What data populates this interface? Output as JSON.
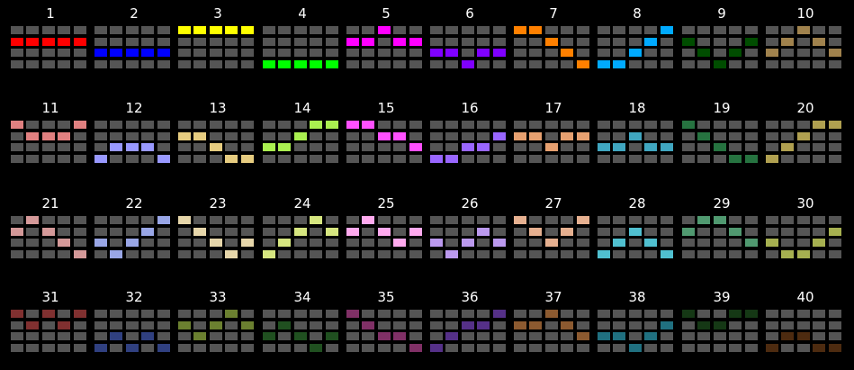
{
  "colors": {
    "background": "#000000",
    "cell_off": "#555555",
    "label_text": "#ffffff"
  },
  "patterns": [
    {
      "label": "1",
      "color": "#ff0000",
      "lit": [
        [
          1,
          0
        ],
        [
          1,
          1
        ],
        [
          1,
          2
        ],
        [
          1,
          3
        ],
        [
          1,
          4
        ]
      ]
    },
    {
      "label": "2",
      "color": "#0000ff",
      "lit": [
        [
          2,
          0
        ],
        [
          2,
          1
        ],
        [
          2,
          2
        ],
        [
          2,
          3
        ],
        [
          2,
          4
        ]
      ]
    },
    {
      "label": "3",
      "color": "#ffff00",
      "lit": [
        [
          0,
          0
        ],
        [
          0,
          1
        ],
        [
          0,
          2
        ],
        [
          0,
          3
        ],
        [
          0,
          4
        ]
      ]
    },
    {
      "label": "4",
      "color": "#00ff00",
      "lit": [
        [
          3,
          0
        ],
        [
          3,
          1
        ],
        [
          3,
          2
        ],
        [
          3,
          3
        ],
        [
          3,
          4
        ]
      ]
    },
    {
      "label": "5",
      "color": "#ff00ff",
      "lit": [
        [
          0,
          2
        ],
        [
          1,
          0
        ],
        [
          1,
          1
        ],
        [
          1,
          3
        ],
        [
          1,
          4
        ]
      ]
    },
    {
      "label": "6",
      "color": "#7f00ff",
      "lit": [
        [
          2,
          0
        ],
        [
          2,
          1
        ],
        [
          2,
          3
        ],
        [
          2,
          4
        ],
        [
          3,
          2
        ]
      ]
    },
    {
      "label": "7",
      "color": "#ff8000",
      "lit": [
        [
          0,
          0
        ],
        [
          0,
          1
        ],
        [
          1,
          2
        ],
        [
          2,
          3
        ],
        [
          3,
          4
        ]
      ]
    },
    {
      "label": "8",
      "color": "#00aaff",
      "lit": [
        [
          0,
          4
        ],
        [
          1,
          3
        ],
        [
          2,
          2
        ],
        [
          3,
          0
        ],
        [
          3,
          1
        ]
      ]
    },
    {
      "label": "9",
      "color": "#004d00",
      "lit": [
        [
          1,
          0
        ],
        [
          1,
          4
        ],
        [
          2,
          1
        ],
        [
          2,
          3
        ],
        [
          3,
          2
        ]
      ]
    },
    {
      "label": "10",
      "color": "#a0824d",
      "lit": [
        [
          0,
          2
        ],
        [
          1,
          1
        ],
        [
          1,
          3
        ],
        [
          2,
          0
        ],
        [
          2,
          4
        ]
      ]
    },
    {
      "label": "11",
      "color": "#e08080",
      "lit": [
        [
          0,
          0
        ],
        [
          0,
          4
        ],
        [
          1,
          1
        ],
        [
          1,
          2
        ],
        [
          1,
          3
        ]
      ]
    },
    {
      "label": "12",
      "color": "#9999ff",
      "lit": [
        [
          2,
          1
        ],
        [
          2,
          2
        ],
        [
          2,
          3
        ],
        [
          3,
          0
        ],
        [
          3,
          4
        ]
      ]
    },
    {
      "label": "13",
      "color": "#e6cc80",
      "lit": [
        [
          1,
          0
        ],
        [
          1,
          1
        ],
        [
          2,
          2
        ],
        [
          3,
          3
        ],
        [
          3,
          4
        ]
      ]
    },
    {
      "label": "14",
      "color": "#aaf050",
      "lit": [
        [
          0,
          3
        ],
        [
          0,
          4
        ],
        [
          1,
          2
        ],
        [
          2,
          0
        ],
        [
          2,
          1
        ]
      ]
    },
    {
      "label": "15",
      "color": "#ff50ff",
      "lit": [
        [
          0,
          0
        ],
        [
          0,
          1
        ],
        [
          1,
          2
        ],
        [
          1,
          3
        ],
        [
          2,
          4
        ]
      ]
    },
    {
      "label": "16",
      "color": "#9966ff",
      "lit": [
        [
          1,
          4
        ],
        [
          2,
          2
        ],
        [
          2,
          3
        ],
        [
          3,
          0
        ],
        [
          3,
          1
        ]
      ]
    },
    {
      "label": "17",
      "color": "#e6a070",
      "lit": [
        [
          1,
          0
        ],
        [
          1,
          1
        ],
        [
          1,
          3
        ],
        [
          1,
          4
        ],
        [
          2,
          2
        ]
      ]
    },
    {
      "label": "18",
      "color": "#40a6c0",
      "lit": [
        [
          1,
          2
        ],
        [
          2,
          0
        ],
        [
          2,
          1
        ],
        [
          2,
          3
        ],
        [
          2,
          4
        ]
      ]
    },
    {
      "label": "19",
      "color": "#267340",
      "lit": [
        [
          0,
          0
        ],
        [
          1,
          1
        ],
        [
          2,
          2
        ],
        [
          3,
          3
        ],
        [
          3,
          4
        ]
      ]
    },
    {
      "label": "20",
      "color": "#b0a050",
      "lit": [
        [
          0,
          3
        ],
        [
          0,
          4
        ],
        [
          1,
          2
        ],
        [
          2,
          1
        ],
        [
          3,
          0
        ]
      ]
    },
    {
      "label": "21",
      "color": "#d49999",
      "lit": [
        [
          0,
          1
        ],
        [
          1,
          0
        ],
        [
          1,
          2
        ],
        [
          2,
          3
        ],
        [
          3,
          4
        ]
      ]
    },
    {
      "label": "22",
      "color": "#99a6e6",
      "lit": [
        [
          0,
          4
        ],
        [
          1,
          3
        ],
        [
          2,
          0
        ],
        [
          2,
          2
        ],
        [
          3,
          1
        ]
      ]
    },
    {
      "label": "23",
      "color": "#e6d6aa",
      "lit": [
        [
          0,
          0
        ],
        [
          1,
          1
        ],
        [
          2,
          2
        ],
        [
          2,
          4
        ],
        [
          3,
          3
        ]
      ]
    },
    {
      "label": "24",
      "color": "#d6e680",
      "lit": [
        [
          0,
          3
        ],
        [
          1,
          2
        ],
        [
          1,
          4
        ],
        [
          2,
          1
        ],
        [
          3,
          0
        ]
      ]
    },
    {
      "label": "25",
      "color": "#ffaaee",
      "lit": [
        [
          0,
          1
        ],
        [
          1,
          0
        ],
        [
          1,
          2
        ],
        [
          1,
          4
        ],
        [
          2,
          3
        ]
      ]
    },
    {
      "label": "26",
      "color": "#bb99ee",
      "lit": [
        [
          1,
          3
        ],
        [
          2,
          0
        ],
        [
          2,
          2
        ],
        [
          2,
          4
        ],
        [
          3,
          1
        ]
      ]
    },
    {
      "label": "27",
      "color": "#e6b090",
      "lit": [
        [
          0,
          0
        ],
        [
          0,
          4
        ],
        [
          1,
          1
        ],
        [
          1,
          3
        ],
        [
          2,
          2
        ]
      ]
    },
    {
      "label": "28",
      "color": "#50c0d0",
      "lit": [
        [
          1,
          2
        ],
        [
          2,
          1
        ],
        [
          2,
          3
        ],
        [
          3,
          0
        ],
        [
          3,
          4
        ]
      ]
    },
    {
      "label": "29",
      "color": "#509970",
      "lit": [
        [
          0,
          1
        ],
        [
          0,
          2
        ],
        [
          1,
          0
        ],
        [
          1,
          3
        ],
        [
          2,
          4
        ]
      ]
    },
    {
      "label": "30",
      "color": "#a6b050",
      "lit": [
        [
          1,
          4
        ],
        [
          2,
          0
        ],
        [
          2,
          3
        ],
        [
          3,
          1
        ],
        [
          3,
          2
        ]
      ]
    },
    {
      "label": "31",
      "color": "#803030",
      "lit": [
        [
          0,
          0
        ],
        [
          0,
          2
        ],
        [
          0,
          4
        ],
        [
          1,
          1
        ],
        [
          1,
          3
        ]
      ]
    },
    {
      "label": "32",
      "color": "#304080",
      "lit": [
        [
          2,
          1
        ],
        [
          2,
          3
        ],
        [
          3,
          0
        ],
        [
          3,
          2
        ],
        [
          3,
          4
        ]
      ]
    },
    {
      "label": "33",
      "color": "#6b8030",
      "lit": [
        [
          0,
          3
        ],
        [
          1,
          0
        ],
        [
          1,
          2
        ],
        [
          1,
          4
        ],
        [
          2,
          1
        ]
      ]
    },
    {
      "label": "34",
      "color": "#205020",
      "lit": [
        [
          1,
          1
        ],
        [
          2,
          0
        ],
        [
          2,
          2
        ],
        [
          2,
          4
        ],
        [
          3,
          3
        ]
      ]
    },
    {
      "label": "35",
      "color": "#803066",
      "lit": [
        [
          0,
          0
        ],
        [
          1,
          1
        ],
        [
          2,
          2
        ],
        [
          2,
          3
        ],
        [
          3,
          4
        ]
      ]
    },
    {
      "label": "36",
      "color": "#553088",
      "lit": [
        [
          0,
          4
        ],
        [
          1,
          2
        ],
        [
          1,
          3
        ],
        [
          2,
          1
        ],
        [
          3,
          0
        ]
      ]
    },
    {
      "label": "37",
      "color": "#8c5a30",
      "lit": [
        [
          0,
          2
        ],
        [
          1,
          0
        ],
        [
          1,
          1
        ],
        [
          1,
          3
        ],
        [
          2,
          4
        ]
      ]
    },
    {
      "label": "38",
      "color": "#207080",
      "lit": [
        [
          1,
          4
        ],
        [
          2,
          0
        ],
        [
          2,
          1
        ],
        [
          2,
          3
        ],
        [
          3,
          2
        ]
      ]
    },
    {
      "label": "39",
      "color": "#153815",
      "lit": [
        [
          0,
          0
        ],
        [
          0,
          3
        ],
        [
          0,
          4
        ],
        [
          1,
          1
        ],
        [
          1,
          2
        ]
      ]
    },
    {
      "label": "40",
      "color": "#4d2b10",
      "lit": [
        [
          2,
          1
        ],
        [
          2,
          2
        ],
        [
          3,
          0
        ],
        [
          3,
          3
        ],
        [
          3,
          4
        ]
      ]
    }
  ]
}
